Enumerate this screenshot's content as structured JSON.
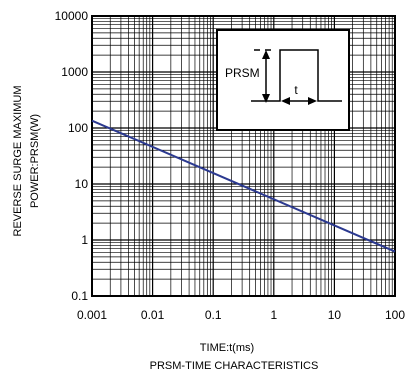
{
  "chart_data": {
    "type": "line",
    "title": "PRSM-TIME CHARACTERISTICS",
    "xlabel": "TIME:t(ms)",
    "ylabel_line1": "REVERSE   SURGE MAXIMUM",
    "ylabel_line2": "POWER:PRSM(W)",
    "x_scale": "log",
    "y_scale": "log",
    "xlim": [
      0.001,
      100
    ],
    "ylim": [
      0.1,
      10000
    ],
    "grid": true,
    "x_ticks": [
      "0.001",
      "0.01",
      "0.1",
      "1",
      "10",
      "100"
    ],
    "y_ticks": [
      "10000",
      "1000",
      "100",
      "10",
      "1",
      "0.1"
    ],
    "series": [
      {
        "x": [
          0.001,
          100
        ],
        "y": [
          135,
          0.62
        ]
      }
    ],
    "inset": {
      "peak_label": "PRSM",
      "width_label": "t"
    },
    "colors": {
      "line": "#2b3990",
      "axes": "#000000"
    }
  }
}
